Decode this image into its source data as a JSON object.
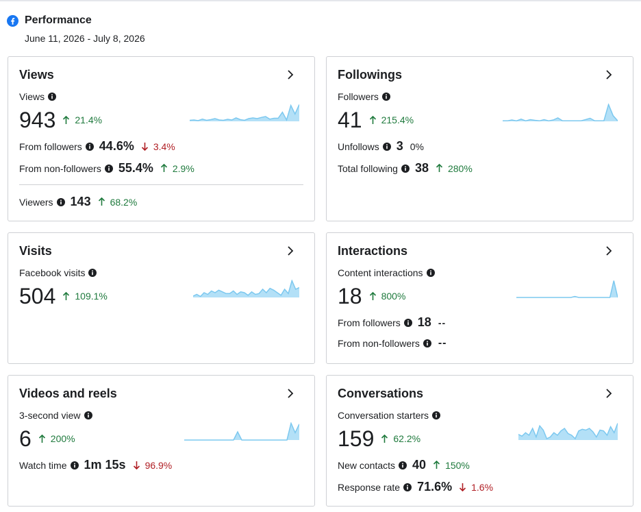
{
  "header": {
    "title": "Performance",
    "date_range": "June 11, 2026 - July 8, 2026"
  },
  "colors": {
    "up": "#1f7a3d",
    "down": "#b01e24",
    "sparkline_fill": "#b3e0f7",
    "sparkline_stroke": "#7cc8ef",
    "facebook_blue": "#1877f2"
  },
  "icons": {
    "header": "facebook-logo-icon",
    "card_link": "chevron-right-icon",
    "metric_info": "info-icon",
    "increase": "arrow-up-icon",
    "decrease": "arrow-down-icon"
  },
  "cards": {
    "views": {
      "title": "Views",
      "primary_label": "Views",
      "primary_value": "943",
      "primary_change": "21.4%",
      "rows": [
        {
          "label": "From followers",
          "value": "44.6%",
          "change": "3.4%",
          "direction": "down"
        },
        {
          "label": "From non-followers",
          "value": "55.4%",
          "change": "2.9%",
          "direction": "up"
        }
      ],
      "footer": {
        "label": "Viewers",
        "value": "143",
        "change": "68.2%",
        "direction": "up"
      },
      "sparkline": [
        0.08,
        0.1,
        0.06,
        0.15,
        0.08,
        0.12,
        0.18,
        0.1,
        0.08,
        0.14,
        0.1,
        0.22,
        0.12,
        0.08,
        0.18,
        0.22,
        0.18,
        0.25,
        0.3,
        0.15,
        0.2,
        0.2,
        0.55,
        0.1,
        0.95,
        0.45,
        1.0
      ]
    },
    "followings": {
      "title": "Followings",
      "primary_label": "Followers",
      "primary_value": "41",
      "primary_change": "215.4%",
      "rows": [
        {
          "label": "Unfollows",
          "value": "3",
          "change": "0%",
          "direction": "flat"
        },
        {
          "label": "Total following",
          "value": "38",
          "change": "280%",
          "direction": "up"
        }
      ],
      "sparkline": [
        0.05,
        0.05,
        0.1,
        0.05,
        0.15,
        0.05,
        0.12,
        0.08,
        0.05,
        0.12,
        0.05,
        0.1,
        0.22,
        0.05,
        0.05,
        0.05,
        0.05,
        0.05,
        0.12,
        0.2,
        0.05,
        0.05,
        0.05,
        1.0,
        0.35,
        0.05
      ]
    },
    "visits": {
      "title": "Visits",
      "primary_label": "Facebook visits",
      "primary_value": "504",
      "primary_change": "109.1%",
      "sparkline": [
        0.1,
        0.2,
        0.08,
        0.3,
        0.2,
        0.4,
        0.3,
        0.45,
        0.35,
        0.25,
        0.25,
        0.4,
        0.2,
        0.35,
        0.3,
        0.15,
        0.35,
        0.2,
        0.25,
        0.5,
        0.3,
        0.55,
        0.45,
        0.3,
        0.15,
        0.5,
        0.25,
        1.0,
        0.5,
        0.6
      ]
    },
    "interactions": {
      "title": "Interactions",
      "primary_label": "Content interactions",
      "primary_value": "18",
      "primary_change": "800%",
      "rows": [
        {
          "label": "From followers",
          "value": "18",
          "change": "--",
          "direction": "none"
        },
        {
          "label": "From non-followers",
          "value": "--",
          "change": "",
          "direction": "none"
        }
      ],
      "sparkline": [
        0.02,
        0.02,
        0.02,
        0.02,
        0.02,
        0.02,
        0.02,
        0.02,
        0.02,
        0.02,
        0.02,
        0.02,
        0.02,
        0.02,
        0.02,
        0.08,
        0.02,
        0.02,
        0.02,
        0.02,
        0.02,
        0.02,
        0.02,
        0.02,
        0.02,
        1.0,
        0.02
      ]
    },
    "videos": {
      "title": "Videos and reels",
      "primary_label": "3-second view",
      "primary_value": "6",
      "primary_change": "200%",
      "rows": [
        {
          "label": "Watch time",
          "value": "1m 15s",
          "change": "96.9%",
          "direction": "down"
        }
      ],
      "sparkline": [
        0.02,
        0.02,
        0.02,
        0.02,
        0.02,
        0.02,
        0.02,
        0.02,
        0.02,
        0.02,
        0.02,
        0.02,
        0.02,
        0.5,
        0.02,
        0.02,
        0.02,
        0.02,
        0.02,
        0.02,
        0.02,
        0.02,
        0.02,
        0.02,
        0.02,
        0.02,
        1.0,
        0.45,
        0.95
      ]
    },
    "conversations": {
      "title": "Conversations",
      "primary_label": "Conversation starters",
      "primary_value": "159",
      "primary_change": "62.2%",
      "rows": [
        {
          "label": "New contacts",
          "value": "40",
          "change": "150%",
          "direction": "up"
        },
        {
          "label": "Response rate",
          "value": "71.6%",
          "change": "1.6%",
          "direction": "down"
        }
      ],
      "sparkline": [
        0.35,
        0.25,
        0.45,
        0.3,
        0.7,
        0.2,
        0.85,
        0.6,
        0.1,
        0.2,
        0.45,
        0.3,
        0.55,
        0.7,
        0.4,
        0.3,
        0.1,
        0.55,
        0.65,
        0.6,
        0.7,
        0.5,
        0.2,
        0.6,
        0.55,
        0.3,
        0.8,
        0.45,
        1.0
      ]
    }
  }
}
